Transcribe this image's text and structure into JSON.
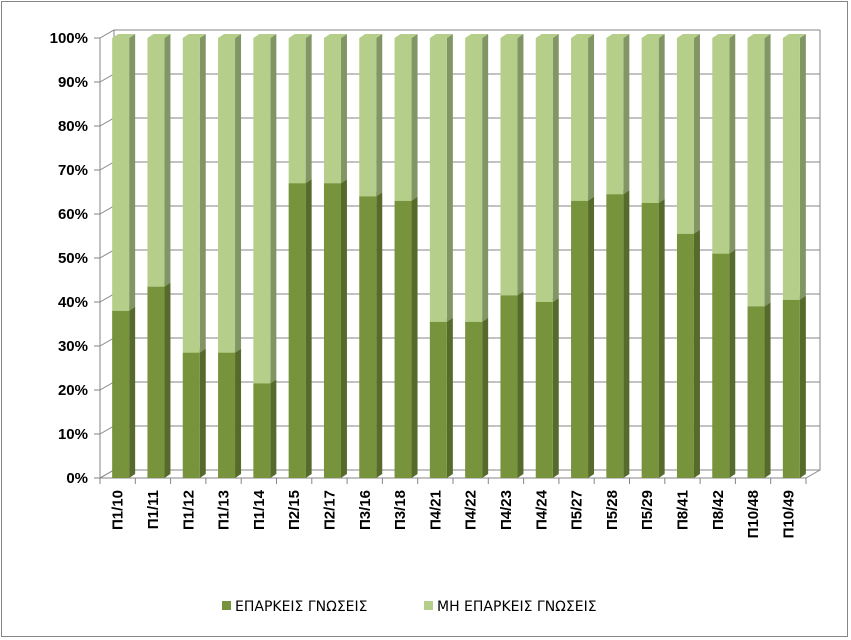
{
  "chart_data": {
    "type": "bar",
    "stacked": true,
    "percent_stacked": true,
    "three_d": true,
    "categories": [
      "Π1/10",
      "Π1/11",
      "Π1/12",
      "Π1/13",
      "Π1/14",
      "Π2/15",
      "Π2/17",
      "Π3/16",
      "Π3/18",
      "Π4/21",
      "Π4/22",
      "Π4/23",
      "Π4/24",
      "Π5/27",
      "Π5/28",
      "Π5/29",
      "Π8/41",
      "Π8/42",
      "Π10/48",
      "Π10/49"
    ],
    "series": [
      {
        "name": "ΕΠΑΡΚΕΙΣ ΓΝΩΣΕΙΣ",
        "color": "#77933C",
        "values": [
          38,
          43.5,
          28.5,
          28.5,
          21.5,
          67,
          67,
          64,
          63,
          35.5,
          35.5,
          41.5,
          40,
          63,
          64.5,
          62.5,
          55.5,
          51,
          39,
          40.5
        ]
      },
      {
        "name": "ΜΗ ΕΠΑΡΚΕΙΣ ΓΝΩΣΕΙΣ",
        "color": "#B5CF8B",
        "values": [
          62,
          56.5,
          71.5,
          71.5,
          78.5,
          33,
          33,
          36,
          37,
          64.5,
          64.5,
          58.5,
          60,
          37,
          35.5,
          37.5,
          44.5,
          49,
          61,
          59.5
        ]
      }
    ],
    "yticks": [
      "0%",
      "10%",
      "20%",
      "30%",
      "40%",
      "50%",
      "60%",
      "70%",
      "80%",
      "90%",
      "100%"
    ],
    "ylim": [
      0,
      100
    ],
    "grid": true,
    "legend_position": "bottom"
  }
}
